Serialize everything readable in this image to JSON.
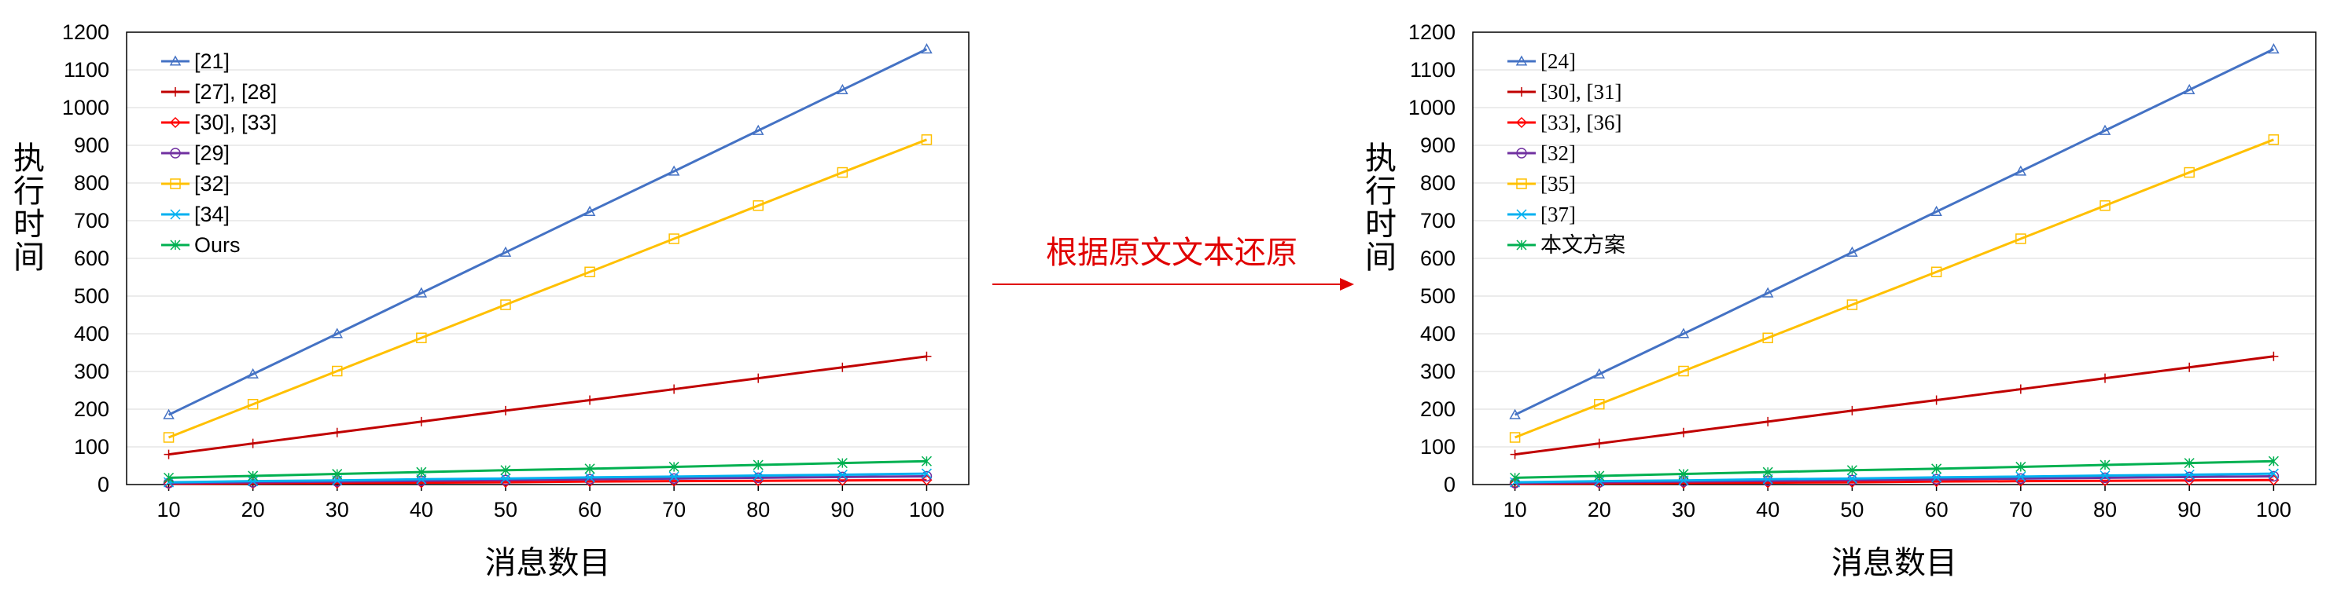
{
  "annotation": {
    "text": "根据原文文本还原",
    "color": "#e00000"
  },
  "chart_data": [
    {
      "type": "line",
      "title": "",
      "xlabel": "消息数目",
      "ylabel": "执行时间",
      "x": [
        10,
        20,
        30,
        40,
        50,
        60,
        70,
        80,
        90,
        100
      ],
      "xlim": [
        5,
        105
      ],
      "ylim": [
        0,
        1200
      ],
      "yticks": [
        0,
        100,
        200,
        300,
        400,
        500,
        600,
        700,
        800,
        900,
        1000,
        1100,
        1200
      ],
      "grid": true,
      "legend": "top-left",
      "series": [
        {
          "name": "[21]",
          "color": "#4472c4",
          "marker": "triangle",
          "values": [
            185,
            293,
            400,
            508,
            616,
            724,
            831,
            939,
            1047,
            1155
          ]
        },
        {
          "name": "[27], [28]",
          "color": "#c00000",
          "marker": "plus",
          "values": [
            80,
            109,
            138,
            167,
            196,
            224,
            253,
            282,
            311,
            340
          ]
        },
        {
          "name": "[30],  [33]",
          "color": "#ff0000",
          "marker": "diamond",
          "values": [
            2,
            3,
            4,
            5,
            6,
            8,
            9,
            10,
            11,
            12
          ]
        },
        {
          "name": "[29]",
          "color": "#7030a0",
          "marker": "circle",
          "values": [
            4,
            6,
            8,
            10,
            12,
            14,
            16,
            18,
            20,
            22
          ]
        },
        {
          "name": "[32]",
          "color": "#ffc000",
          "marker": "square",
          "values": [
            125,
            213,
            301,
            389,
            477,
            564,
            652,
            740,
            828,
            915
          ]
        },
        {
          "name": "[34]",
          "color": "#00b0f0",
          "marker": "x",
          "values": [
            6,
            9,
            11,
            14,
            16,
            19,
            21,
            24,
            26,
            29
          ]
        },
        {
          "name": "Ours",
          "color": "#00b050",
          "marker": "star",
          "values": [
            18,
            23,
            28,
            33,
            38,
            42,
            47,
            52,
            57,
            62
          ]
        }
      ]
    },
    {
      "type": "line",
      "title": "",
      "xlabel": "消息数目",
      "ylabel": "执行时间",
      "x": [
        10,
        20,
        30,
        40,
        50,
        60,
        70,
        80,
        90,
        100
      ],
      "xlim": [
        5,
        105
      ],
      "ylim": [
        0,
        1200
      ],
      "yticks": [
        0,
        100,
        200,
        300,
        400,
        500,
        600,
        700,
        800,
        900,
        1000,
        1100,
        1200
      ],
      "grid": true,
      "legend": "top-left",
      "series": [
        {
          "name": "[24]",
          "color": "#4472c4",
          "marker": "triangle",
          "values": [
            185,
            293,
            400,
            508,
            616,
            724,
            831,
            939,
            1047,
            1155
          ]
        },
        {
          "name": "[30], [31]",
          "color": "#c00000",
          "marker": "plus",
          "values": [
            80,
            109,
            138,
            167,
            196,
            224,
            253,
            282,
            311,
            340
          ]
        },
        {
          "name": "[33], [36]",
          "color": "#ff0000",
          "marker": "diamond",
          "values": [
            2,
            3,
            4,
            5,
            6,
            8,
            9,
            10,
            11,
            12
          ]
        },
        {
          "name": "[32]",
          "color": "#7030a0",
          "marker": "circle",
          "values": [
            4,
            6,
            8,
            10,
            12,
            14,
            16,
            18,
            20,
            22
          ]
        },
        {
          "name": "[35]",
          "color": "#ffc000",
          "marker": "square",
          "values": [
            125,
            213,
            301,
            389,
            477,
            564,
            652,
            740,
            828,
            915
          ]
        },
        {
          "name": "[37]",
          "color": "#00b0f0",
          "marker": "x",
          "values": [
            6,
            9,
            11,
            14,
            16,
            19,
            21,
            24,
            26,
            29
          ]
        },
        {
          "name": "本文方案",
          "color": "#00b050",
          "marker": "star",
          "values": [
            18,
            23,
            28,
            33,
            38,
            42,
            47,
            52,
            57,
            62
          ]
        }
      ]
    }
  ]
}
